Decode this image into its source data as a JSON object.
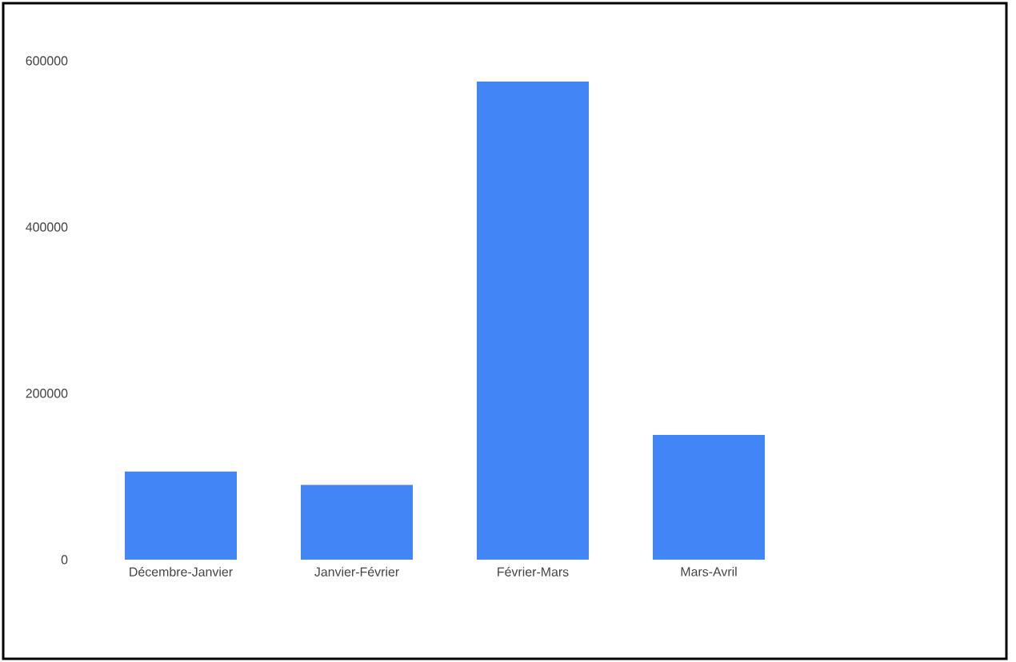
{
  "chart_data": {
    "type": "bar",
    "categories": [
      "Décembre-Janvier",
      "Janvier-Février",
      "Février-Mars",
      "Mars-Avril"
    ],
    "values": [
      106000,
      90000,
      575000,
      150000
    ],
    "color": "#4285f4",
    "ylim": [
      0,
      600000
    ],
    "yticks": [
      0,
      200000,
      400000,
      600000
    ],
    "grid": false
  }
}
